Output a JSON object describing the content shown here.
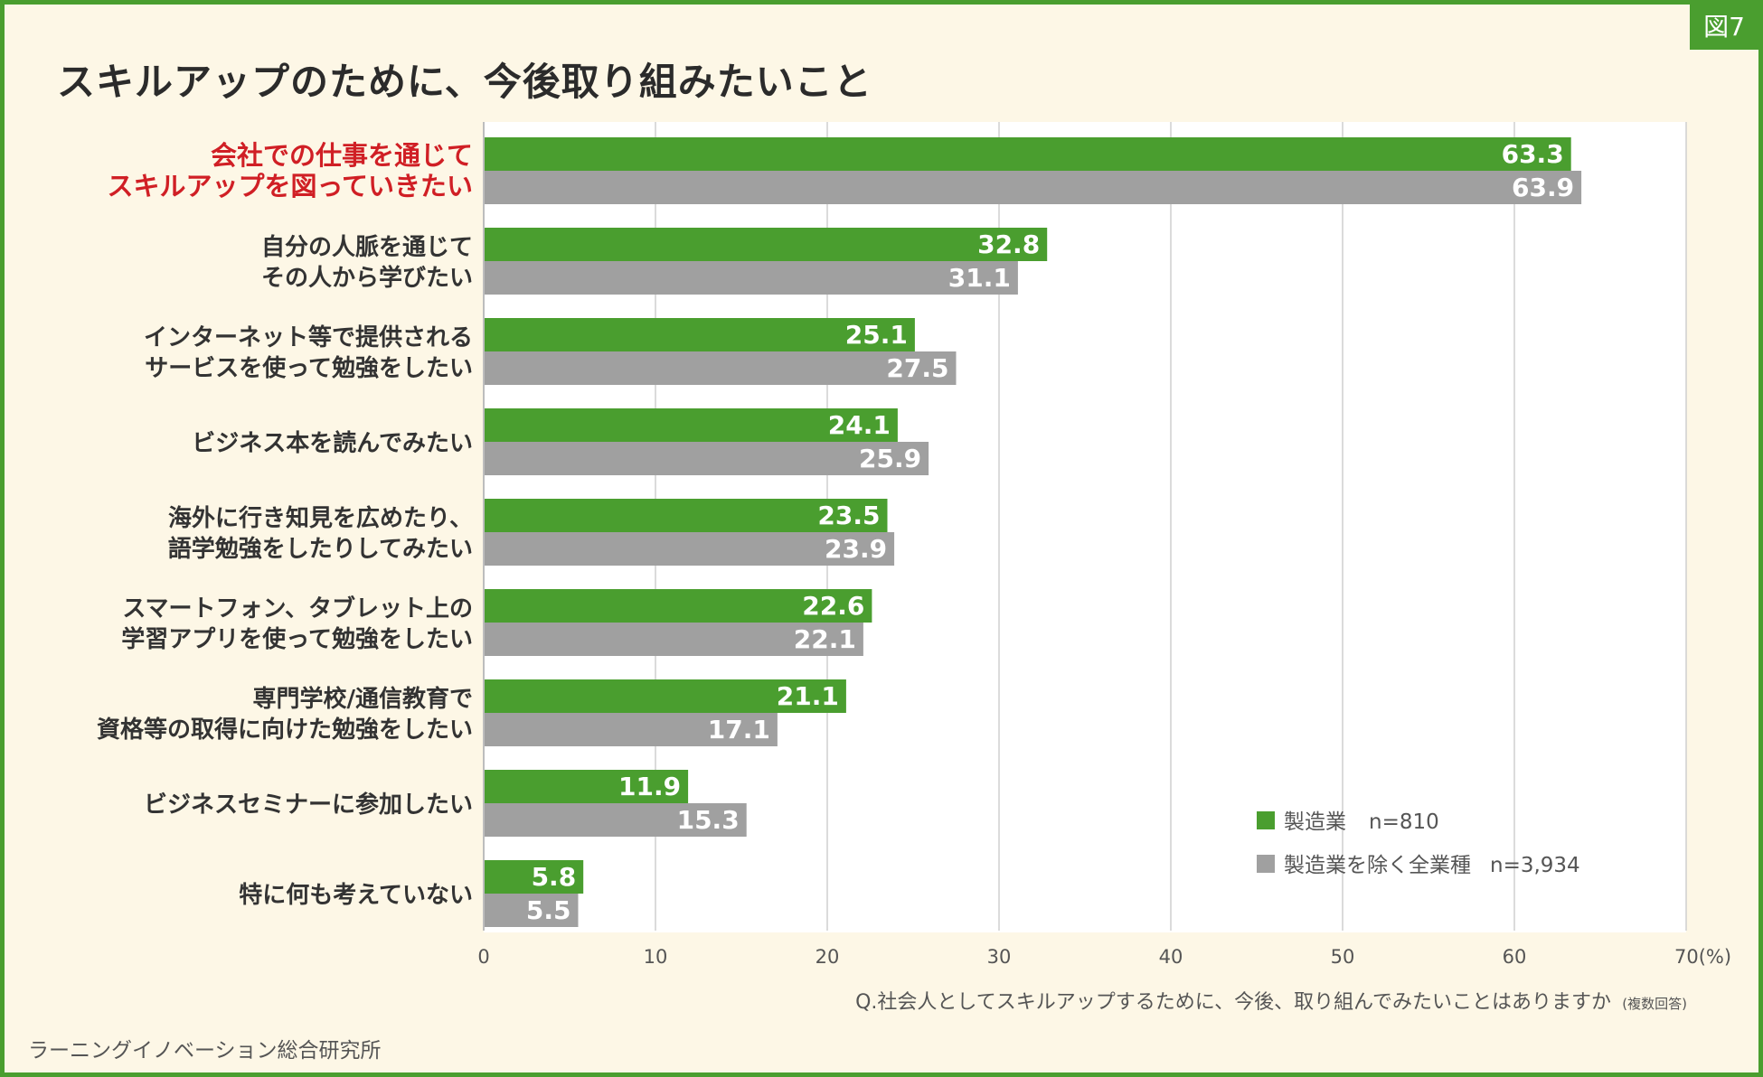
{
  "badge": "図7",
  "title": "スキルアップのために、今後取り組みたいこと",
  "source": "ラーニングイノベーション総合研究所",
  "colors": {
    "series1": "#4a9e2f",
    "series2": "#a0a0a0",
    "highlight_label": "#d01f25",
    "label": "#333333",
    "frame": "#4a9e2f",
    "background": "#fdf7e6"
  },
  "chart_data": {
    "type": "bar",
    "orientation": "horizontal",
    "categories": [
      [
        "会社での仕事を通じて",
        "スキルアップを図っていきたい"
      ],
      [
        "自分の人脈を通じて",
        "その人から学びたい"
      ],
      [
        "インターネット等で提供される",
        "サービスを使って勉強をしたい"
      ],
      [
        "ビジネス本を読んでみたい"
      ],
      [
        "海外に行き知見を広めたり、",
        "語学勉強をしたりしてみたい"
      ],
      [
        "スマートフォン、タブレット上の",
        "学習アプリを使って勉強をしたい"
      ],
      [
        "専門学校/通信教育で",
        "資格等の取得に向けた勉強をしたい"
      ],
      [
        "ビジネスセミナーに参加したい"
      ],
      [
        "特に何も考えていない"
      ]
    ],
    "highlight_category_index": 0,
    "series": [
      {
        "name": "製造業",
        "n_label": "n=810",
        "values": [
          63.3,
          32.8,
          25.1,
          24.1,
          23.5,
          22.6,
          21.1,
          11.9,
          5.8
        ]
      },
      {
        "name": "製造業を除く全業種",
        "n_label": "n=3,934",
        "values": [
          63.9,
          31.1,
          27.5,
          25.9,
          23.9,
          22.1,
          17.1,
          15.3,
          5.5
        ]
      }
    ],
    "x_ticks": [
      "0",
      "10",
      "20",
      "30",
      "40",
      "50",
      "60",
      "70(%)"
    ],
    "xlim": [
      0,
      70
    ],
    "xlabel": "Q.社会人としてスキルアップするために、今後、取り組んでみたいことはありますか",
    "xlabel_note": "(複数回答)",
    "legend_position": "bottom-right",
    "grid": true
  }
}
